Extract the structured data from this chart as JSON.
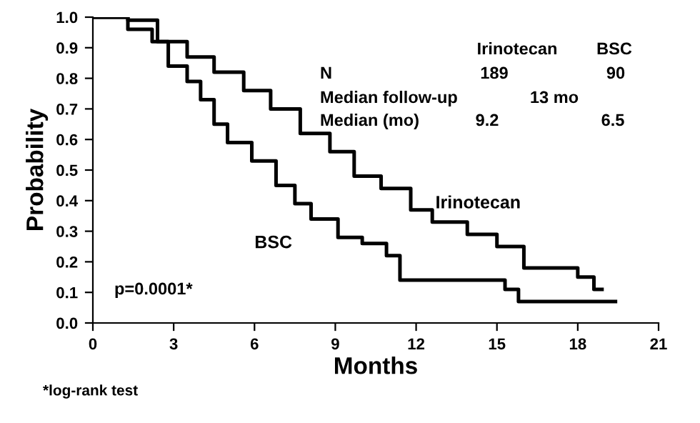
{
  "chart_data": {
    "type": "step",
    "xlabel": "Months",
    "ylabel": "Probability",
    "series": [
      {
        "name": "Irinotecan",
        "color": "#000000",
        "x": [
          0,
          1.3,
          2.4,
          3.5,
          4.5,
          5.6,
          6.6,
          7.7,
          8.8,
          9.7,
          10.7,
          11.8,
          12.6,
          13.9,
          15.0,
          16.0,
          18.0,
          18.6,
          18.9
        ],
        "values": [
          1.0,
          0.99,
          0.92,
          0.87,
          0.82,
          0.76,
          0.7,
          0.62,
          0.56,
          0.48,
          0.44,
          0.37,
          0.33,
          0.29,
          0.25,
          0.18,
          0.15,
          0.11,
          0.11
        ]
      },
      {
        "name": "BSC",
        "color": "#000000",
        "x": [
          0,
          1.3,
          2.2,
          2.8,
          3.5,
          4.0,
          4.5,
          5.0,
          5.9,
          6.8,
          7.5,
          8.1,
          9.1,
          10.0,
          10.9,
          11.4,
          15.3,
          15.8,
          19.4
        ],
        "values": [
          1.0,
          0.96,
          0.92,
          0.84,
          0.79,
          0.73,
          0.65,
          0.59,
          0.53,
          0.45,
          0.39,
          0.34,
          0.28,
          0.26,
          0.22,
          0.14,
          0.11,
          0.07,
          0.07
        ]
      }
    ],
    "xlim": [
      0,
      21
    ],
    "xticks": [
      0,
      3,
      6,
      9,
      12,
      15,
      18,
      21
    ],
    "ylim": [
      0,
      1
    ],
    "yticks": [
      {
        "value": 0,
        "label": "0.0"
      },
      {
        "value": 0.1,
        "label": "0.1"
      },
      {
        "value": 0.2,
        "label": "0.2"
      },
      {
        "value": 0.3,
        "label": "0.3"
      },
      {
        "value": 0.4,
        "label": "0.4"
      },
      {
        "value": 0.5,
        "label": "0.5"
      },
      {
        "value": 0.6,
        "label": "0.6"
      },
      {
        "value": 0.7,
        "label": "0.7"
      },
      {
        "value": 0.8,
        "label": "0.8"
      },
      {
        "value": 0.9,
        "label": "0.9"
      },
      {
        "value": 1,
        "label": "1.0"
      }
    ],
    "grid": false,
    "legend": false,
    "line_style": "solid",
    "marker": "none",
    "annotations": [
      "Irinotecan",
      "BSC",
      "N",
      "189",
      "90",
      "Median follow-up",
      "13 mo",
      "Median (mo)",
      "9.2",
      "6.5",
      "p=0.0001*",
      "*log-rank test"
    ]
  }
}
